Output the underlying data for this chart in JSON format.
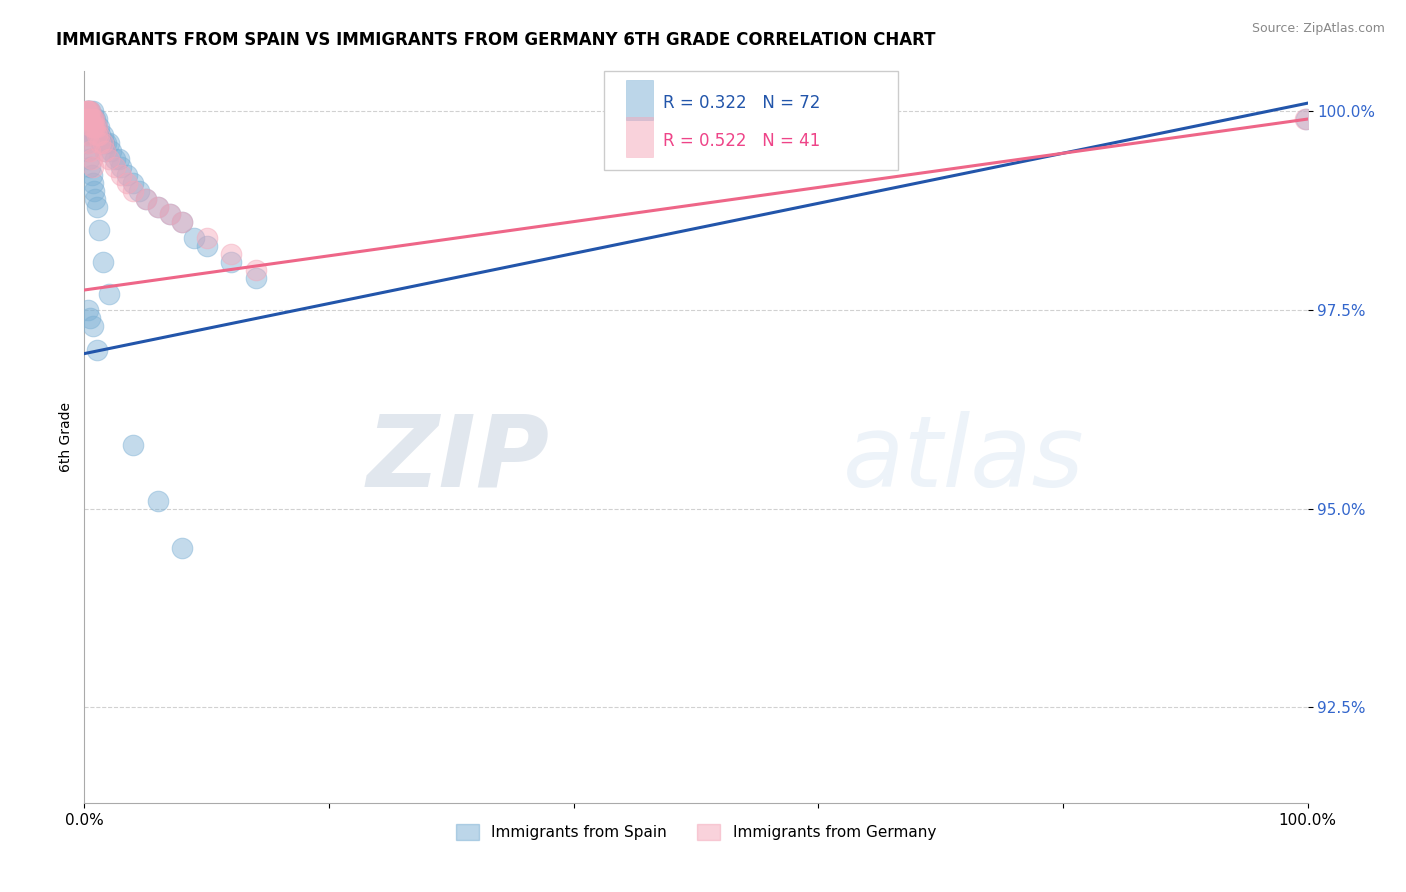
{
  "title": "IMMIGRANTS FROM SPAIN VS IMMIGRANTS FROM GERMANY 6TH GRADE CORRELATION CHART",
  "source": "Source: ZipAtlas.com",
  "ylabel": "6th Grade",
  "legend_label1": "Immigrants from Spain",
  "legend_label2": "Immigrants from Germany",
  "r1": 0.322,
  "n1": 72,
  "r2": 0.522,
  "n2": 41,
  "color_blue": "#7BAFD4",
  "color_pink": "#F4A7B9",
  "line_blue": "#2255AA",
  "line_pink": "#EE6688",
  "watermark_zip": "ZIP",
  "watermark_atlas": "atlas",
  "xlim": [
    0.0,
    1.0
  ],
  "ylim": [
    0.913,
    1.005
  ],
  "yticks": [
    0.925,
    0.95,
    0.975,
    1.0
  ],
  "ytick_labels": [
    "92.5%",
    "95.0%",
    "97.5%",
    "100.0%"
  ],
  "xticks": [
    0.0,
    0.2,
    0.4,
    0.6,
    0.8,
    1.0
  ],
  "xtick_labels": [
    "0.0%",
    "",
    "",
    "",
    "",
    "100.0%"
  ],
  "blue_scatter_x": [
    0.001,
    0.001,
    0.002,
    0.002,
    0.002,
    0.003,
    0.003,
    0.003,
    0.003,
    0.004,
    0.004,
    0.004,
    0.005,
    0.005,
    0.005,
    0.005,
    0.006,
    0.006,
    0.007,
    0.007,
    0.007,
    0.008,
    0.008,
    0.009,
    0.009,
    0.01,
    0.01,
    0.011,
    0.012,
    0.013,
    0.014,
    0.015,
    0.016,
    0.017,
    0.018,
    0.02,
    0.022,
    0.025,
    0.028,
    0.03,
    0.035,
    0.04,
    0.045,
    0.05,
    0.06,
    0.07,
    0.08,
    0.09,
    0.1,
    0.12,
    0.14,
    0.001,
    0.002,
    0.003,
    0.004,
    0.005,
    0.006,
    0.007,
    0.008,
    0.009,
    0.01,
    0.012,
    0.015,
    0.02,
    0.003,
    0.005,
    0.007,
    0.01,
    0.04,
    0.06,
    0.08,
    0.999
  ],
  "blue_scatter_y": [
    0.999,
    0.998,
    1.0,
    0.999,
    0.998,
    1.0,
    0.999,
    0.998,
    0.997,
    1.0,
    0.999,
    0.998,
    1.0,
    0.999,
    0.998,
    0.997,
    0.999,
    0.998,
    1.0,
    0.999,
    0.997,
    0.999,
    0.998,
    0.999,
    0.997,
    0.999,
    0.998,
    0.997,
    0.998,
    0.997,
    0.996,
    0.997,
    0.996,
    0.995,
    0.996,
    0.996,
    0.995,
    0.994,
    0.994,
    0.993,
    0.992,
    0.991,
    0.99,
    0.989,
    0.988,
    0.987,
    0.986,
    0.984,
    0.983,
    0.981,
    0.979,
    0.997,
    0.996,
    0.995,
    0.994,
    0.993,
    0.992,
    0.991,
    0.99,
    0.989,
    0.988,
    0.985,
    0.981,
    0.977,
    0.975,
    0.974,
    0.973,
    0.97,
    0.958,
    0.951,
    0.945,
    0.999
  ],
  "pink_scatter_x": [
    0.001,
    0.001,
    0.002,
    0.002,
    0.003,
    0.003,
    0.004,
    0.004,
    0.005,
    0.005,
    0.006,
    0.006,
    0.007,
    0.007,
    0.008,
    0.008,
    0.009,
    0.01,
    0.01,
    0.012,
    0.013,
    0.015,
    0.017,
    0.02,
    0.025,
    0.03,
    0.035,
    0.04,
    0.05,
    0.06,
    0.07,
    0.08,
    0.1,
    0.12,
    0.14,
    0.003,
    0.004,
    0.005,
    0.006,
    0.007,
    0.998
  ],
  "pink_scatter_y": [
    1.0,
    0.999,
    1.0,
    0.999,
    1.0,
    0.999,
    1.0,
    0.999,
    1.0,
    0.999,
    0.999,
    0.998,
    0.999,
    0.998,
    0.999,
    0.998,
    0.998,
    0.998,
    0.997,
    0.997,
    0.996,
    0.996,
    0.995,
    0.994,
    0.993,
    0.992,
    0.991,
    0.99,
    0.989,
    0.988,
    0.987,
    0.986,
    0.984,
    0.982,
    0.98,
    0.997,
    0.996,
    0.995,
    0.994,
    0.993,
    0.999
  ],
  "blue_line_x": [
    0.0,
    1.0
  ],
  "blue_line_y": [
    0.9695,
    1.001
  ],
  "pink_line_x": [
    0.0,
    1.0
  ],
  "pink_line_y": [
    0.9775,
    0.999
  ]
}
